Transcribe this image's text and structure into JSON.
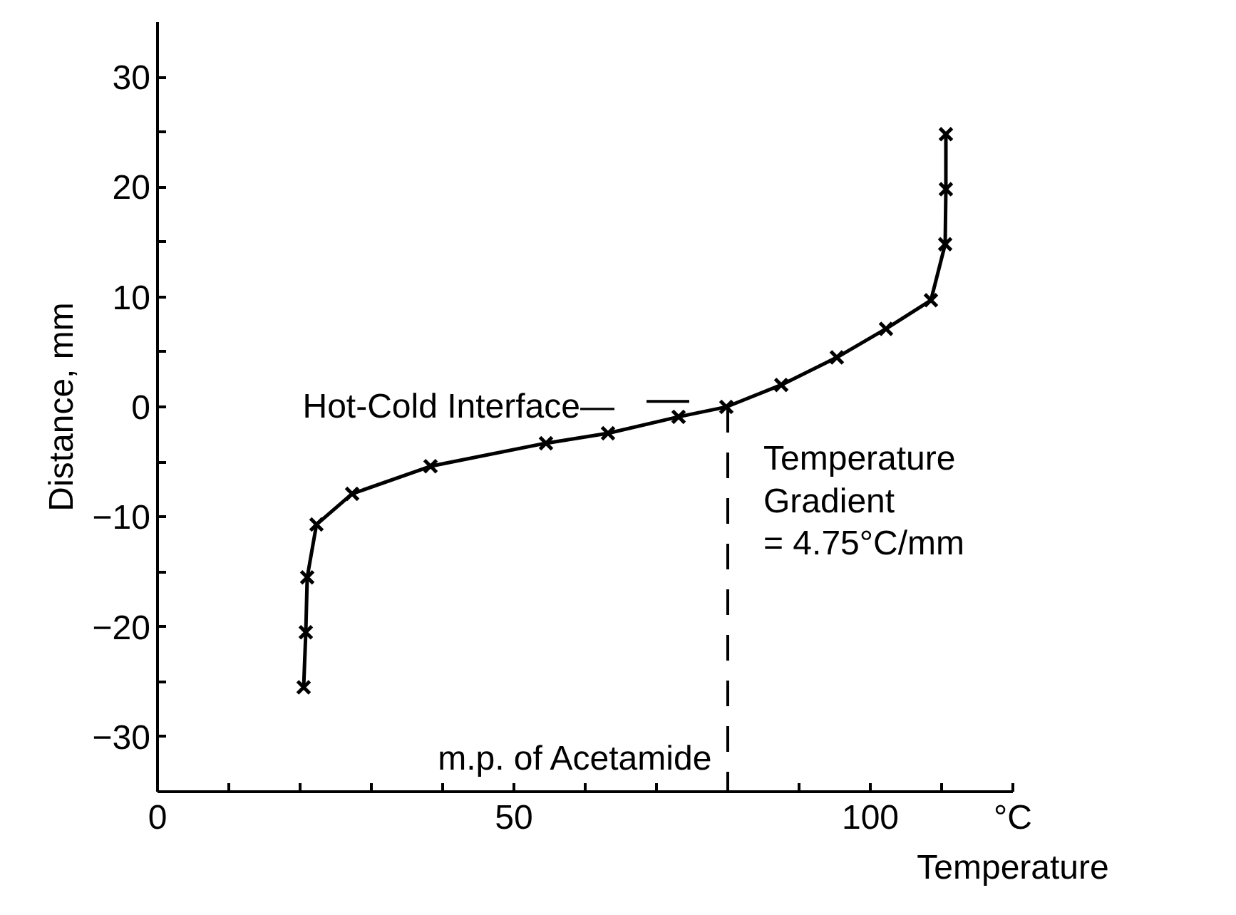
{
  "chart_data": {
    "type": "line",
    "xlabel": "Temperature",
    "ylabel": "Distance, mm",
    "x": [
      20.5,
      20.8,
      21.0,
      22.3,
      27.3,
      38.3,
      54.5,
      63.2,
      73.1,
      79.8,
      87.5,
      95.3,
      102.2,
      108.5,
      110.5,
      110.6,
      110.6
    ],
    "values": [
      -25.5,
      -20.5,
      -15.5,
      -10.7,
      -7.9,
      -5.4,
      -3.3,
      -2.4,
      -0.9,
      0,
      2.0,
      4.5,
      7.1,
      9.7,
      14.8,
      19.8,
      24.8
    ],
    "color": "#000000",
    "marker": "cross",
    "line_style": "solid",
    "grid": false,
    "xlim": [
      0,
      120
    ],
    "ylim": [
      -35,
      35
    ],
    "xticks": [
      0,
      {
        "value": 10,
        "label": null
      },
      {
        "value": 20,
        "label": null
      },
      {
        "value": 30,
        "label": null
      },
      {
        "value": 40,
        "label": null
      },
      50,
      {
        "value": 60,
        "label": null
      },
      {
        "value": 70,
        "label": null
      },
      {
        "value": 80,
        "label": null
      },
      {
        "value": 90,
        "label": null
      },
      100,
      {
        "value": 110,
        "label": null
      },
      {
        "value": 120,
        "label": "°C"
      }
    ],
    "yticks": [
      -30,
      {
        "value": -25,
        "label": null
      },
      -20,
      {
        "value": -15,
        "label": null
      },
      -10,
      {
        "value": -5,
        "label": null
      },
      0,
      {
        "value": 5,
        "label": null
      },
      10,
      {
        "value": 15,
        "label": null
      },
      20,
      {
        "value": 25,
        "label": null
      },
      30
    ],
    "ref_lines": [
      {
        "axis": "x",
        "value": 80,
        "label": "m.p. of Acetamide",
        "line_style": "dashed",
        "color": "#000000"
      }
    ],
    "annotations": [
      {
        "text": "Hot-Cold Interface—",
        "x": 73.1,
        "y": 0
      },
      "Temperature\nGradient\n= 4.75°C/mm"
    ]
  }
}
